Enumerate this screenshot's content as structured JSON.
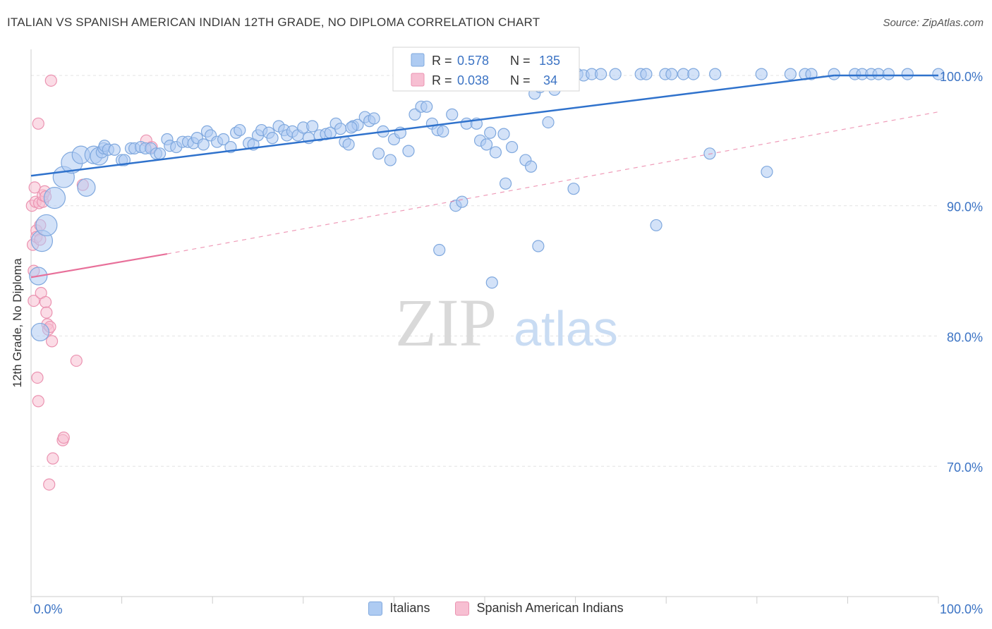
{
  "title": "ITALIAN VS SPANISH AMERICAN INDIAN 12TH GRADE, NO DIPLOMA CORRELATION CHART",
  "source": "Source: ZipAtlas.com",
  "watermark": {
    "zip": "ZIP",
    "atlas": "atlas"
  },
  "colors": {
    "blue_fill": "#aecbf2",
    "blue_stroke": "#7fa8de",
    "blue_line": "#2f72cc",
    "pink_fill": "#f7bfd2",
    "pink_stroke": "#eb93b1",
    "pink_line": "#e8709a",
    "axis_text": "#3b73c4"
  },
  "stats_legend": {
    "r_label": "R =",
    "n_label": "N =",
    "rows": [
      {
        "r": "0.578",
        "n": "135"
      },
      {
        "r": "0.038",
        "n": "34"
      }
    ]
  },
  "chart_data": {
    "type": "scatter",
    "title": "ITALIAN VS SPANISH AMERICAN INDIAN 12TH GRADE, NO DIPLOMA CORRELATION CHART",
    "xlabel": "",
    "ylabel": "12th Grade, No Diploma",
    "xlim": [
      0,
      100
    ],
    "ylim": [
      60,
      102
    ],
    "x_tick_labels": [
      "0.0%",
      "100.0%"
    ],
    "y_ticks": [
      70,
      80,
      90,
      100
    ],
    "y_tick_labels": [
      "70.0%",
      "80.0%",
      "90.0%",
      "100.0%"
    ],
    "grid": true,
    "legend_position": "bottom-center",
    "series": [
      {
        "name": "Italians",
        "trend": {
          "x": [
            0,
            88.5
          ],
          "y": [
            92.3,
            100.0
          ]
        },
        "points": [
          [
            0.8,
            84.6,
            2
          ],
          [
            1,
            80.3,
            2
          ],
          [
            1.2,
            87.3,
            3
          ],
          [
            1.7,
            88.5,
            3
          ],
          [
            2.6,
            90.6,
            3
          ],
          [
            3.6,
            92.2,
            3
          ],
          [
            4.5,
            93.3,
            3
          ],
          [
            5.5,
            93.9,
            2
          ],
          [
            6.1,
            91.4,
            2
          ],
          [
            6.9,
            93.9,
            2
          ],
          [
            7.5,
            93.8,
            2
          ],
          [
            7.8,
            94.1,
            1
          ],
          [
            8,
            94.4,
            1
          ],
          [
            8.1,
            94.6,
            1
          ],
          [
            8.5,
            94.3,
            1
          ],
          [
            9.2,
            94.3,
            1
          ],
          [
            10,
            93.5,
            1
          ],
          [
            10.3,
            93.5,
            1
          ],
          [
            11,
            94.4,
            1
          ],
          [
            11.4,
            94.4,
            1
          ],
          [
            12.1,
            94.5,
            1
          ],
          [
            12.6,
            94.4,
            1
          ],
          [
            13.2,
            94.4,
            1
          ],
          [
            13.8,
            94.0,
            1
          ],
          [
            14.2,
            94.0,
            1
          ],
          [
            15,
            95.1,
            1
          ],
          [
            15.3,
            94.6,
            1
          ],
          [
            16,
            94.5,
            1
          ],
          [
            16.7,
            94.9,
            1
          ],
          [
            17.3,
            94.9,
            1
          ],
          [
            17.9,
            94.8,
            1
          ],
          [
            18.3,
            95.2,
            1
          ],
          [
            19,
            94.7,
            1
          ],
          [
            19.4,
            95.7,
            1
          ],
          [
            19.8,
            95.4,
            1
          ],
          [
            20.5,
            94.9,
            1
          ],
          [
            21.2,
            95.1,
            1
          ],
          [
            22,
            94.5,
            1
          ],
          [
            22.6,
            95.6,
            1
          ],
          [
            23,
            95.8,
            1
          ],
          [
            24,
            94.8,
            1
          ],
          [
            24.5,
            94.7,
            1
          ],
          [
            25,
            95.4,
            1
          ],
          [
            25.4,
            95.8,
            1
          ],
          [
            26.2,
            95.6,
            1
          ],
          [
            26.6,
            95.2,
            1
          ],
          [
            27.3,
            96.1,
            1
          ],
          [
            27.9,
            95.8,
            1
          ],
          [
            28.2,
            95.4,
            1
          ],
          [
            28.8,
            95.7,
            1
          ],
          [
            29.4,
            95.4,
            1
          ],
          [
            30,
            96.0,
            1
          ],
          [
            30.6,
            95.2,
            1
          ],
          [
            31,
            96.1,
            1
          ],
          [
            31.8,
            95.4,
            1
          ],
          [
            32.5,
            95.5,
            1
          ],
          [
            33,
            95.6,
            1
          ],
          [
            33.6,
            96.3,
            1
          ],
          [
            34.1,
            95.9,
            1
          ],
          [
            34.6,
            94.9,
            1
          ],
          [
            35,
            94.7,
            1
          ],
          [
            35.5,
            96.1,
            1
          ],
          [
            36,
            96.2,
            1
          ],
          [
            36.8,
            96.8,
            1
          ],
          [
            37.3,
            96.5,
            1
          ],
          [
            37.8,
            96.7,
            1
          ],
          [
            35.3,
            96.0,
            1
          ],
          [
            38.3,
            94.0,
            1
          ],
          [
            38.8,
            95.7,
            1
          ],
          [
            39.6,
            93.5,
            1
          ],
          [
            40,
            95.1,
            1
          ],
          [
            40.7,
            95.6,
            1
          ],
          [
            41.6,
            94.2,
            1
          ],
          [
            42.3,
            97.0,
            1
          ],
          [
            43,
            97.6,
            1
          ],
          [
            43.6,
            97.6,
            1
          ],
          [
            44.2,
            96.3,
            1
          ],
          [
            44.8,
            95.8,
            1
          ],
          [
            45.4,
            95.7,
            1
          ],
          [
            46.4,
            97.0,
            1
          ],
          [
            46.8,
            90.0,
            1
          ],
          [
            47.5,
            90.3,
            1
          ],
          [
            48,
            96.3,
            1
          ],
          [
            49.1,
            96.3,
            1
          ],
          [
            49.5,
            95.0,
            1
          ],
          [
            50.2,
            94.7,
            1
          ],
          [
            50.6,
            95.6,
            1
          ],
          [
            51.2,
            94.1,
            1
          ],
          [
            52.3,
            91.7,
            1
          ],
          [
            52.1,
            95.5,
            1
          ],
          [
            53,
            94.5,
            1
          ],
          [
            54.5,
            93.5,
            1
          ],
          [
            55.1,
            93.0,
            1
          ],
          [
            45,
            86.6,
            1
          ],
          [
            50.8,
            84.1,
            1
          ],
          [
            52.4,
            100.1,
            1
          ],
          [
            53.8,
            100.1,
            1
          ],
          [
            54.8,
            99.8,
            1
          ],
          [
            55.5,
            98.6,
            1
          ],
          [
            56.1,
            99.1,
            1
          ],
          [
            56.8,
            100.1,
            1
          ],
          [
            57.3,
            99.3,
            1
          ],
          [
            57.7,
            98.9,
            1
          ],
          [
            58.5,
            100.1,
            1
          ],
          [
            59,
            100.0,
            1
          ],
          [
            59.6,
            100.1,
            1
          ],
          [
            60.2,
            100.1,
            1
          ],
          [
            60.9,
            100.0,
            1
          ],
          [
            61.8,
            100.1,
            1
          ],
          [
            62.8,
            100.1,
            1
          ],
          [
            64.4,
            100.1,
            1
          ],
          [
            57,
            96.4,
            1
          ],
          [
            55.9,
            86.9,
            1
          ],
          [
            59.8,
            91.3,
            1
          ],
          [
            67.2,
            100.1,
            1
          ],
          [
            67.8,
            100.1,
            1
          ],
          [
            69.9,
            100.1,
            1
          ],
          [
            70.6,
            100.1,
            1
          ],
          [
            71.9,
            100.1,
            1
          ],
          [
            73,
            100.1,
            1
          ],
          [
            75.4,
            100.1,
            1
          ],
          [
            68.9,
            88.5,
            1
          ],
          [
            74.8,
            94.0,
            1
          ],
          [
            80.5,
            100.1,
            1
          ],
          [
            83.7,
            100.1,
            1
          ],
          [
            85.3,
            100.1,
            1
          ],
          [
            86,
            100.1,
            1
          ],
          [
            88.5,
            100.1,
            1
          ],
          [
            81.1,
            92.6,
            1
          ],
          [
            90.8,
            100.1,
            1
          ],
          [
            91.6,
            100.1,
            1
          ],
          [
            92.6,
            100.1,
            1
          ],
          [
            93.4,
            100.1,
            1
          ],
          [
            94.5,
            100.1,
            1
          ],
          [
            96.6,
            100.1,
            1
          ],
          [
            100,
            100.1,
            1
          ]
        ]
      },
      {
        "name": "Spanish American Indians",
        "trend": {
          "x": [
            0,
            15
          ],
          "y": [
            84.5,
            86.3
          ]
        },
        "trend_extension": {
          "x": [
            15,
            100
          ],
          "y": [
            86.3,
            97.2
          ]
        },
        "points": [
          [
            0.1,
            90.0,
            1
          ],
          [
            0.2,
            87.0,
            1
          ],
          [
            0.3,
            85.0,
            1
          ],
          [
            0.3,
            82.7,
            1
          ],
          [
            0.4,
            91.4,
            1
          ],
          [
            0.5,
            90.3,
            1
          ],
          [
            0.6,
            88.1,
            1
          ],
          [
            0.6,
            87.6,
            1
          ],
          [
            0.7,
            76.8,
            1
          ],
          [
            0.8,
            75.0,
            1
          ],
          [
            0.8,
            96.3,
            1
          ],
          [
            0.9,
            90.2,
            1
          ],
          [
            1,
            88.5,
            1
          ],
          [
            1.0,
            87.4,
            1
          ],
          [
            1.1,
            83.3,
            1
          ],
          [
            1.3,
            90.3,
            1
          ],
          [
            1.3,
            90.8,
            1
          ],
          [
            1.5,
            91.1,
            1
          ],
          [
            1.6,
            90.7,
            1
          ],
          [
            1.6,
            82.6,
            1
          ],
          [
            1.7,
            81.8,
            1
          ],
          [
            1.8,
            80.9,
            1
          ],
          [
            1.9,
            80.5,
            1
          ],
          [
            2,
            68.6,
            1
          ],
          [
            2.1,
            80.7,
            1
          ],
          [
            2.2,
            99.6,
            1
          ],
          [
            2.3,
            79.6,
            1
          ],
          [
            2.4,
            70.6,
            1
          ],
          [
            3.5,
            72.0,
            1
          ],
          [
            3.6,
            72.2,
            1
          ],
          [
            5,
            78.1,
            1
          ],
          [
            5.7,
            91.6,
            1
          ],
          [
            12.7,
            95.0,
            1
          ],
          [
            13.3,
            94.5,
            1
          ]
        ]
      }
    ]
  }
}
